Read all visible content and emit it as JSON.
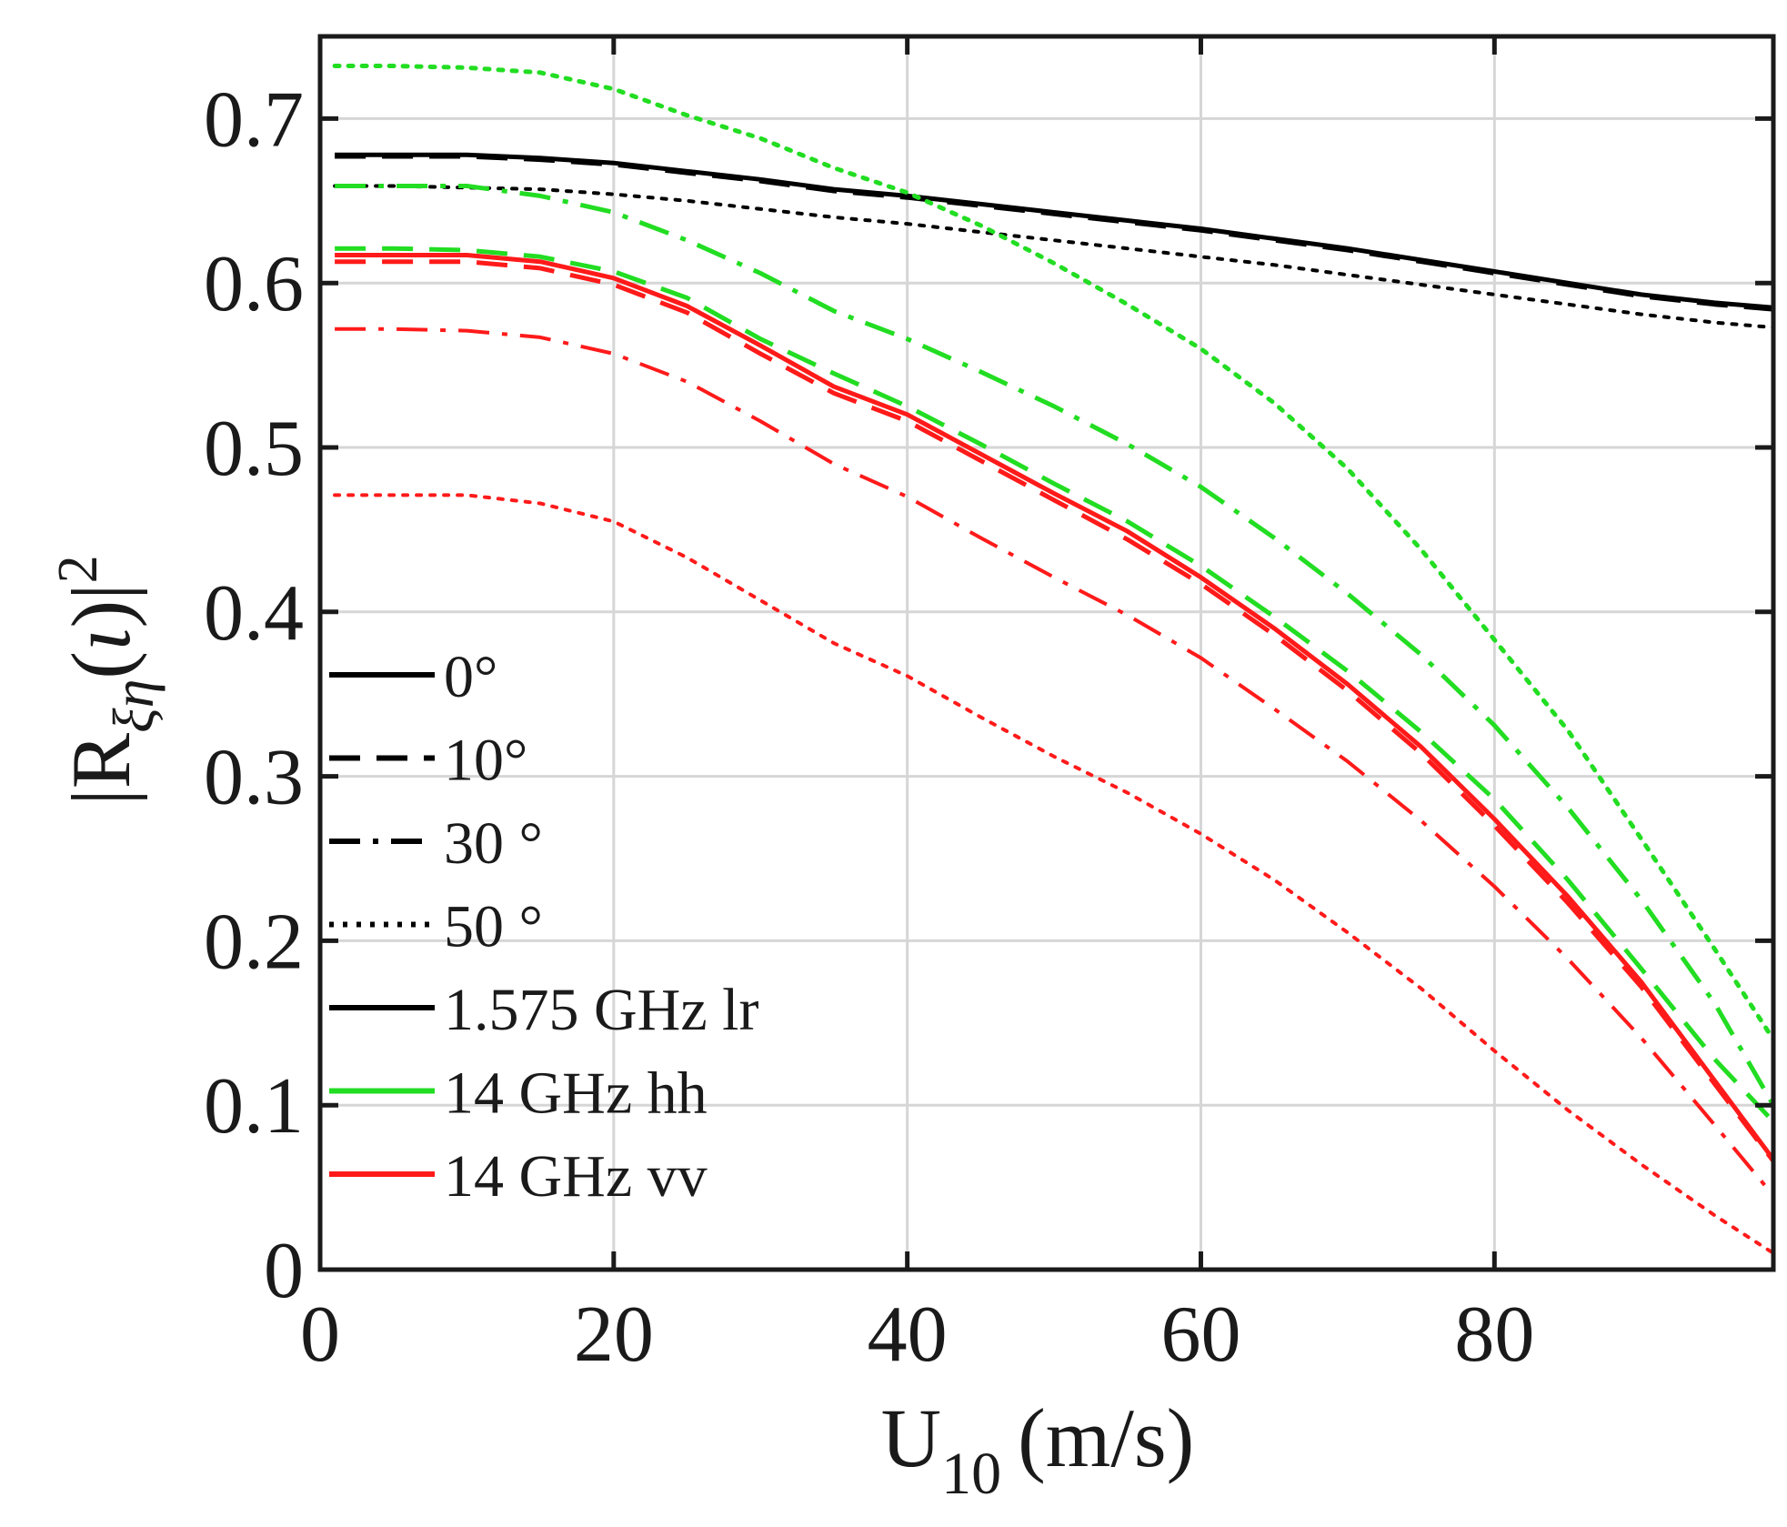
{
  "chart_data": {
    "type": "line",
    "title": "",
    "xlabel": "U10 (m/s)",
    "xlabel_main": "U",
    "xlabel_sub": "10",
    "xlabel_unit": "(m/s)",
    "ylabel": "|R_ξη(ι)|^2",
    "ylabel_base": "R",
    "ylabel_sub": "ξη",
    "ylabel_arg": "ι",
    "ylabel_exp": "2",
    "xlim": [
      0,
      99
    ],
    "ylim": [
      0,
      0.75
    ],
    "grid": true,
    "xticks": [
      0,
      20,
      40,
      60,
      80
    ],
    "xtick_labels": [
      "0",
      "20",
      "40",
      "60",
      "80"
    ],
    "yticks": [
      0,
      0.1,
      0.2,
      0.3,
      0.4,
      0.5,
      0.6,
      0.7
    ],
    "ytick_labels": [
      "0",
      "0.1",
      "0.2",
      "0.3",
      "0.4",
      "0.5",
      "0.6",
      "0.7"
    ],
    "x": [
      1,
      5,
      10,
      15,
      20,
      25,
      30,
      35,
      40,
      45,
      50,
      55,
      60,
      65,
      70,
      75,
      80,
      85,
      90,
      95,
      99
    ],
    "series": [
      {
        "name": "1.575 GHz lr, 0°",
        "color": "#000000",
        "dash": "solid",
        "width": 5,
        "values": [
          0.678,
          0.678,
          0.678,
          0.676,
          0.673,
          0.668,
          0.663,
          0.657,
          0.653,
          0.648,
          0.643,
          0.638,
          0.633,
          0.627,
          0.621,
          0.614,
          0.607,
          0.6,
          0.593,
          0.588,
          0.585
        ]
      },
      {
        "name": "1.575 GHz lr, 10°",
        "color": "#000000",
        "dash": "long",
        "width": 5,
        "values": [
          0.677,
          0.677,
          0.677,
          0.675,
          0.672,
          0.667,
          0.662,
          0.656,
          0.652,
          0.647,
          0.642,
          0.637,
          0.632,
          0.626,
          0.62,
          0.613,
          0.606,
          0.599,
          0.592,
          0.587,
          0.584
        ]
      },
      {
        "name": "1.575 GHz lr, 50°",
        "color": "#000000",
        "dash": "dot",
        "width": 4,
        "values": [
          0.659,
          0.659,
          0.658,
          0.657,
          0.654,
          0.65,
          0.645,
          0.64,
          0.636,
          0.631,
          0.626,
          0.621,
          0.616,
          0.611,
          0.605,
          0.599,
          0.593,
          0.587,
          0.581,
          0.576,
          0.573
        ]
      },
      {
        "name": "14 GHz hh, 10°",
        "color": "#22dd22",
        "dash": "long",
        "width": 5,
        "values": [
          0.621,
          0.621,
          0.62,
          0.616,
          0.607,
          0.591,
          0.566,
          0.545,
          0.525,
          0.502,
          0.478,
          0.455,
          0.428,
          0.397,
          0.364,
          0.327,
          0.286,
          0.237,
          0.183,
          0.128,
          0.09
        ]
      },
      {
        "name": "14 GHz hh, 30°",
        "color": "#22dd22",
        "dash": "dashdot",
        "width": 5,
        "values": [
          0.659,
          0.659,
          0.659,
          0.653,
          0.643,
          0.626,
          0.606,
          0.583,
          0.566,
          0.546,
          0.525,
          0.502,
          0.476,
          0.445,
          0.411,
          0.374,
          0.331,
          0.281,
          0.225,
          0.162,
          0.1
        ]
      },
      {
        "name": "14 GHz hh, 50°",
        "color": "#22dd22",
        "dash": "dot",
        "width": 5,
        "values": [
          0.732,
          0.732,
          0.731,
          0.728,
          0.718,
          0.702,
          0.688,
          0.67,
          0.655,
          0.635,
          0.612,
          0.587,
          0.56,
          0.527,
          0.487,
          0.438,
          0.383,
          0.328,
          0.262,
          0.195,
          0.14
        ]
      },
      {
        "name": "14 GHz vv, 0°",
        "color": "#ff1a1a",
        "dash": "solid",
        "width": 5,
        "values": [
          0.617,
          0.617,
          0.617,
          0.613,
          0.603,
          0.586,
          0.562,
          0.537,
          0.52,
          0.496,
          0.472,
          0.449,
          0.421,
          0.39,
          0.356,
          0.318,
          0.274,
          0.227,
          0.175,
          0.115,
          0.067
        ]
      },
      {
        "name": "14 GHz vv, 10°",
        "color": "#ff1a1a",
        "dash": "long",
        "width": 5,
        "values": [
          0.613,
          0.613,
          0.613,
          0.609,
          0.599,
          0.582,
          0.557,
          0.533,
          0.516,
          0.492,
          0.468,
          0.444,
          0.417,
          0.386,
          0.352,
          0.314,
          0.27,
          0.223,
          0.172,
          0.113,
          0.066
        ]
      },
      {
        "name": "14 GHz vv, 30°",
        "color": "#ff1a1a",
        "dash": "dashdot",
        "width": 4,
        "values": [
          0.572,
          0.572,
          0.571,
          0.567,
          0.557,
          0.54,
          0.516,
          0.49,
          0.47,
          0.445,
          0.421,
          0.398,
          0.372,
          0.341,
          0.309,
          0.273,
          0.233,
          0.189,
          0.141,
          0.088,
          0.045
        ]
      },
      {
        "name": "14 GHz vv, 50°",
        "color": "#ff1a1a",
        "dash": "dot",
        "width": 4,
        "values": [
          0.471,
          0.471,
          0.471,
          0.466,
          0.455,
          0.433,
          0.407,
          0.381,
          0.361,
          0.336,
          0.312,
          0.29,
          0.265,
          0.237,
          0.205,
          0.171,
          0.133,
          0.097,
          0.064,
          0.033,
          0.01
        ]
      }
    ],
    "legend": {
      "location": "lower-left",
      "entries": [
        {
          "label": "0°",
          "color": "#000000",
          "dash": "solid"
        },
        {
          "label": "10°",
          "color": "#000000",
          "dash": "long"
        },
        {
          "label": "30 °",
          "color": "#000000",
          "dash": "dashdot"
        },
        {
          "label": "50 °",
          "color": "#000000",
          "dash": "dot"
        },
        {
          "label": "1.575 GHz lr",
          "color": "#000000",
          "dash": "solid"
        },
        {
          "label": "14 GHz hh",
          "color": "#22dd22",
          "dash": "solid"
        },
        {
          "label": "14 GHz vv",
          "color": "#ff1a1a",
          "dash": "solid"
        }
      ]
    }
  }
}
